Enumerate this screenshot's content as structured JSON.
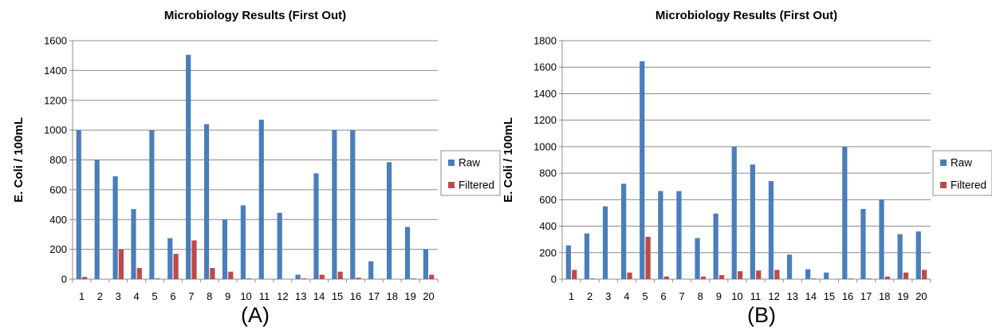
{
  "chart_data": [
    {
      "type": "bar",
      "title": "Microbiology Results (First Out)",
      "ylabel": "E. Coli / 100mL",
      "xlabel": "",
      "caption": "(A)",
      "categories": [
        "1",
        "2",
        "3",
        "4",
        "5",
        "6",
        "7",
        "8",
        "9",
        "10",
        "11",
        "12",
        "13",
        "14",
        "15",
        "16",
        "17",
        "18",
        "19",
        "20"
      ],
      "ylim": [
        0,
        1600
      ],
      "yticks": [
        0,
        200,
        400,
        600,
        800,
        1000,
        1200,
        1400,
        1600
      ],
      "grid": true,
      "legend_position": "right",
      "series": [
        {
          "name": "Raw",
          "color": "#4a7ebb",
          "values": [
            1000,
            800,
            690,
            470,
            1000,
            275,
            1505,
            1040,
            400,
            495,
            1070,
            445,
            30,
            710,
            1000,
            1000,
            120,
            785,
            350,
            200
          ]
        },
        {
          "name": "Filtered",
          "color": "#be4b48",
          "values": [
            15,
            0,
            200,
            75,
            5,
            170,
            260,
            75,
            50,
            5,
            0,
            0,
            5,
            30,
            50,
            10,
            0,
            0,
            5,
            30
          ]
        }
      ]
    },
    {
      "type": "bar",
      "title": "Microbiology Results (First Out)",
      "ylabel": "E. Coli / 100mL",
      "xlabel": "",
      "caption": "(B)",
      "categories": [
        "1",
        "2",
        "3",
        "4",
        "5",
        "6",
        "7",
        "8",
        "9",
        "10",
        "11",
        "12",
        "13",
        "14",
        "15",
        "16",
        "17",
        "18",
        "19",
        "20"
      ],
      "ylim": [
        0,
        1800
      ],
      "yticks": [
        0,
        200,
        400,
        600,
        800,
        1000,
        1200,
        1400,
        1600,
        1800
      ],
      "grid": true,
      "legend_position": "right",
      "series": [
        {
          "name": "Raw",
          "color": "#4a7ebb",
          "values": [
            255,
            345,
            550,
            720,
            1645,
            665,
            665,
            310,
            495,
            1000,
            865,
            740,
            185,
            75,
            50,
            1000,
            530,
            600,
            340,
            360
          ]
        },
        {
          "name": "Filtered",
          "color": "#be4b48",
          "values": [
            70,
            5,
            0,
            50,
            320,
            20,
            0,
            20,
            30,
            60,
            65,
            70,
            0,
            5,
            0,
            5,
            5,
            20,
            50,
            70
          ]
        }
      ]
    }
  ]
}
